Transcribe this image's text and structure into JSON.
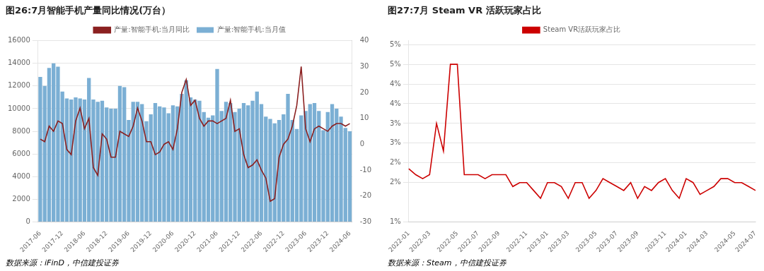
{
  "chart_data": [
    {
      "type": "bar",
      "title": "图26:7月智能手机产量同比情况(万台）",
      "annotations": [
        "数据来源：iFinD，中信建投证券"
      ],
      "categories": [
        "2017-06",
        null,
        null,
        null,
        null,
        "2017-12",
        null,
        null,
        null,
        null,
        "2018-06",
        null,
        null,
        null,
        null,
        "2018-12",
        null,
        null,
        null,
        null,
        "2019-06",
        null,
        null,
        null,
        null,
        "2019-12",
        null,
        null,
        null,
        null,
        "2020-06",
        null,
        null,
        null,
        null,
        "2020-12",
        null,
        null,
        null,
        null,
        "2021-06",
        null,
        null,
        null,
        null,
        "2021-12",
        null,
        null,
        null,
        null,
        "2022-06",
        null,
        null,
        null,
        null,
        "2022-12",
        null,
        null,
        null,
        null,
        "2023-06",
        null,
        null,
        null,
        null,
        "2023-12",
        null,
        null,
        null,
        null,
        "2024-06"
      ],
      "series": [
        {
          "name": "产量:智能手机:当月值",
          "color": "#7bafd4",
          "values": [
            12800,
            12000,
            13600,
            14000,
            13700,
            11500,
            10900,
            10800,
            11000,
            10900,
            10800,
            12700,
            10800,
            10600,
            10700,
            10100,
            10000,
            10000,
            12000,
            11900,
            9000,
            10600,
            10600,
            10400,
            8900,
            9500,
            10500,
            10200,
            10100,
            9600,
            10300,
            10200,
            11300,
            12500,
            11000,
            10800,
            10700,
            9700,
            9200,
            9400,
            13500,
            9800,
            10600,
            10500,
            9700,
            10000,
            10500,
            10300,
            10700,
            11500,
            10400,
            9300,
            9100,
            8700,
            9000,
            9500,
            11300,
            9000,
            8200,
            9400,
            9800,
            10400,
            10500,
            9800,
            8100,
            9700,
            10400,
            10000,
            9300,
            8300,
            8000
          ]
        },
        {
          "name": "产量:智能手机:当月同比",
          "type": "line",
          "axis": "y2",
          "color": "#8b2020",
          "values": [
            2,
            1,
            7,
            5,
            9,
            8,
            -2,
            -4,
            9,
            14,
            6,
            10,
            -9,
            -12,
            4,
            2,
            -5,
            -5,
            5,
            4,
            3,
            7,
            14,
            9,
            1,
            1,
            -4,
            -3,
            0,
            1,
            -2,
            6,
            20,
            25,
            15,
            17,
            10,
            7,
            9,
            9,
            8,
            9,
            10,
            17,
            5,
            6,
            -4,
            -9,
            -8,
            -6,
            -10,
            -13,
            -22,
            -21,
            -5,
            0,
            2,
            7,
            15,
            30,
            6,
            1,
            6,
            7,
            6,
            5,
            7,
            8,
            8,
            7,
            8
          ]
        }
      ],
      "ylim": [
        0,
        16000
      ],
      "yticks": [
        0,
        2000,
        4000,
        6000,
        8000,
        10000,
        12000,
        14000,
        16000
      ],
      "y2lim": [
        -30,
        40
      ],
      "y2ticks": [
        -30,
        -20,
        -10,
        0,
        10,
        20,
        30,
        40
      ],
      "grid": true,
      "legend": "top"
    },
    {
      "type": "line",
      "title": "图27:7月 Steam VR 活跃玩家占比",
      "annotations": [
        "数据来源：Steam，中信建投证券"
      ],
      "categories": [
        "2022-01",
        null,
        null,
        "2022-03",
        null,
        null,
        null,
        "2022-05",
        null,
        null,
        "2022-07",
        null,
        null,
        "2022-09",
        null,
        null,
        null,
        "2022-11",
        null,
        null,
        "2023-01",
        null,
        null,
        "2023-03",
        null,
        null,
        null,
        "2023-05",
        null,
        null,
        "2023-07",
        null,
        null,
        "2023-09",
        null,
        null,
        null,
        "2023-11",
        null,
        null,
        "2024-01",
        null,
        null,
        "2024-03",
        null,
        null,
        null,
        "2024-05",
        null,
        null,
        "2024-07"
      ],
      "series": [
        {
          "name": "Steam VR活跃玩家占比",
          "color": "#cc0000",
          "values": [
            0.0235,
            0.022,
            0.021,
            0.022,
            0.035,
            0.028,
            0.05,
            0.05,
            0.022,
            0.022,
            0.022,
            0.021,
            0.022,
            0.022,
            0.022,
            0.019,
            0.02,
            0.02,
            0.018,
            0.016,
            0.02,
            0.02,
            0.019,
            0.016,
            0.02,
            0.02,
            0.016,
            0.018,
            0.021,
            0.02,
            0.019,
            0.018,
            0.02,
            0.016,
            0.019,
            0.018,
            0.02,
            0.021,
            0.018,
            0.016,
            0.021,
            0.02,
            0.017,
            0.018,
            0.019,
            0.021,
            0.021,
            0.02,
            0.02,
            0.019,
            0.018
          ]
        }
      ],
      "ylim": [
        0.01,
        0.056
      ],
      "yticks": [
        {
          "value": 0.01,
          "label": "1%"
        },
        {
          "value": 0.02,
          "label": "2%"
        },
        {
          "value": 0.025,
          "label": "2%"
        },
        {
          "value": 0.03,
          "label": "3%"
        },
        {
          "value": 0.035,
          "label": "3%"
        },
        {
          "value": 0.04,
          "label": "4%"
        },
        {
          "value": 0.045,
          "label": "4%"
        },
        {
          "value": 0.05,
          "label": "5%"
        },
        {
          "value": 0.055,
          "label": "5%"
        }
      ],
      "grid": true,
      "legend": "top"
    }
  ]
}
